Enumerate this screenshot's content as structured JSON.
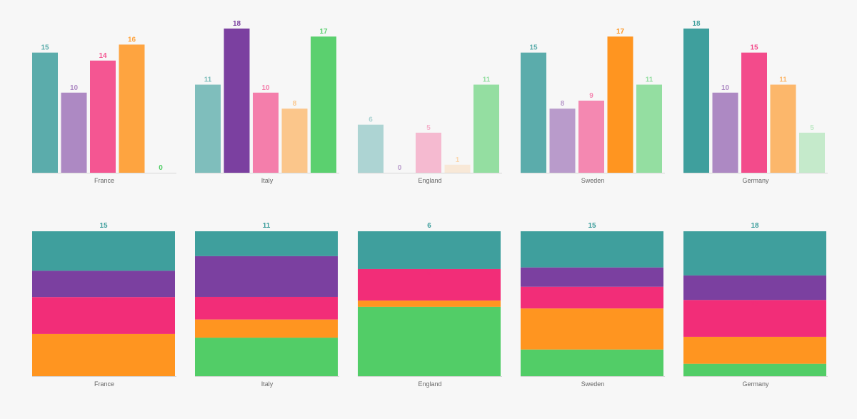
{
  "colors": [
    "#3f9f9d",
    "#7b40a0",
    "#f22d78",
    "#ff9520",
    "#52cd67"
  ],
  "chart_data": [
    {
      "type": "bar",
      "categories": [
        "France",
        "Italy",
        "England",
        "Sweden",
        "Germany"
      ],
      "series": [
        {
          "values": [
            15,
            11,
            6,
            15,
            18
          ]
        },
        {
          "values": [
            10,
            18,
            0,
            8,
            10
          ]
        },
        {
          "values": [
            14,
            10,
            5,
            9,
            15
          ]
        },
        {
          "values": [
            16,
            8,
            1,
            17,
            11
          ]
        },
        {
          "values": [
            0,
            17,
            11,
            11,
            5
          ]
        }
      ],
      "ylim": [
        0,
        18
      ]
    },
    {
      "type": "bar",
      "stacked": true,
      "categories": [
        "France",
        "Italy",
        "England",
        "Sweden",
        "Germany"
      ],
      "series": [
        {
          "values": [
            15,
            11,
            6,
            15,
            18
          ]
        },
        {
          "values": [
            10,
            18,
            0,
            8,
            10
          ]
        },
        {
          "values": [
            14,
            10,
            5,
            9,
            15
          ]
        },
        {
          "values": [
            16,
            8,
            1,
            17,
            11
          ]
        },
        {
          "values": [
            0,
            17,
            11,
            11,
            5
          ]
        }
      ]
    }
  ]
}
